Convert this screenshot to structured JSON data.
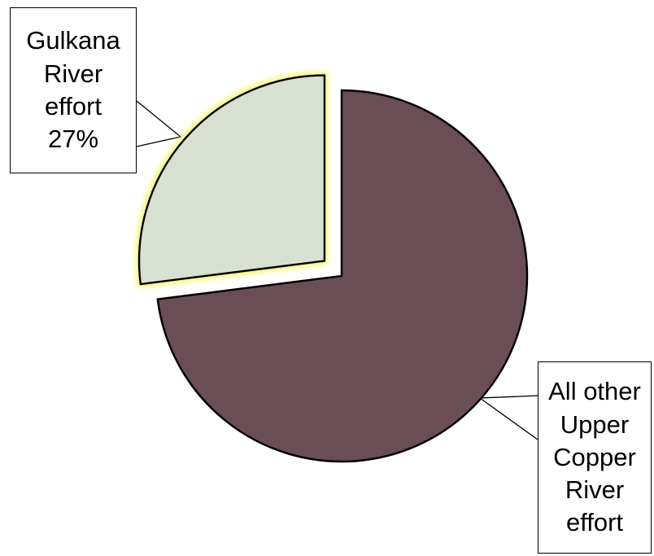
{
  "chart_data": {
    "type": "pie",
    "title": "",
    "start_angle_deg": 0,
    "direction": "clockwise",
    "slices": [
      {
        "name": "All other Upper Copper River effort",
        "label_lines": [
          "All other",
          "Upper",
          "Copper",
          "River",
          "effort"
        ],
        "value": 73,
        "color": "#6b4d55",
        "exploded": false,
        "highlight": false
      },
      {
        "name": "Gulkana River effort",
        "label_lines": [
          "Gulkana",
          "River",
          "effort",
          "27%"
        ],
        "value": 27,
        "color": "#d8e0d2",
        "exploded": true,
        "highlight": true,
        "glow_color": "#f2f55a"
      }
    ],
    "legend": "none"
  }
}
